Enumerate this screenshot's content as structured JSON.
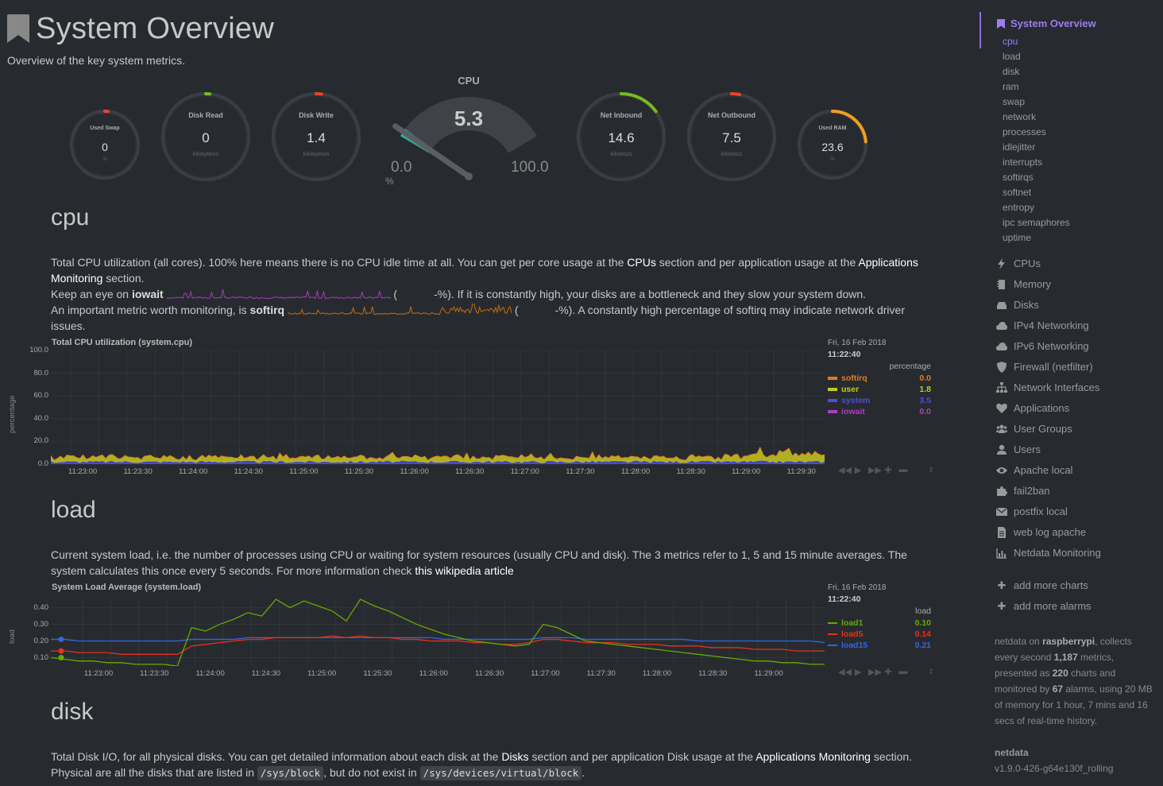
{
  "page": {
    "title": "System Overview",
    "subtitle": "Overview of the key system metrics."
  },
  "gauges": [
    {
      "id": "swap",
      "title": "Used Swap",
      "value": "0",
      "unit": "%",
      "fraction": 0.0,
      "color": "#e8463b"
    },
    {
      "id": "diskread",
      "title": "Disk Read",
      "value": "0",
      "unit": "kilobytes/s",
      "fraction": 0.0,
      "color": "#77bb22"
    },
    {
      "id": "diskwrite",
      "title": "Disk Write",
      "value": "1.4",
      "unit": "kilobytes/s",
      "fraction": 0.02,
      "color": "#ee4422"
    },
    {
      "id": "netin",
      "title": "Net Inbound",
      "value": "14.6",
      "unit": "kilobits/s",
      "fraction": 0.15,
      "color": "#77bb22"
    },
    {
      "id": "netout",
      "title": "Net Outbound",
      "value": "7.5",
      "unit": "kilobits/s",
      "fraction": 0.03,
      "color": "#ee4422"
    },
    {
      "id": "ram",
      "title": "Used RAM",
      "value": "23.6",
      "unit": "%",
      "fraction": 0.236,
      "color": "#f0a020"
    }
  ],
  "cpu_gauge": {
    "title": "CPU",
    "value": "5.3",
    "min": "0.0",
    "max": "100.0",
    "unit": "%",
    "fraction": 0.053
  },
  "cpu": {
    "heading": "cpu",
    "p1_a": "Total CPU utilization (all cores). 100% here means there is no CPU idle time at all. You can get per core usage at the ",
    "p1_link1": "CPUs",
    "p1_b": " section and per application usage at the ",
    "p1_link2": "Applications Monitoring",
    "p1_c": " section.",
    "p2_a": "Keep an eye on ",
    "p2_bold": "iowait",
    "p2_open": " (",
    "p2_tail": "-%). If it is constantly high, your disks are a bottleneck and they slow your system down.",
    "p3_a": "An important metric worth monitoring, is ",
    "p3_bold": "softirq",
    "p3_open": " (",
    "p3_tail": "-%). A constantly high percentage of softirq may indicate network driver issues.",
    "spark_iowait_color": "#a63db8",
    "spark_softirq_color": "#c86b10"
  },
  "load": {
    "heading": "load",
    "p1_a": "Current system load, i.e. the number of processes using CPU or waiting for system resources (usually CPU and disk). The 3 metrics refer to 1, 5 and 15 minute averages. The system calculates this once every 5 seconds. For more information check ",
    "p1_link": "this wikipedia article"
  },
  "disk": {
    "heading": "disk",
    "p1_a": "Total Disk I/O, for all physical disks. You can get detailed information about each disk at the ",
    "p1_link1": "Disks",
    "p1_b": " section and per application Disk usage at the ",
    "p1_link2": "Applications Monitoring",
    "p1_c": " section.",
    "p2_a": "Physical are all the disks that are listed in ",
    "p2_code1": "/sys/block",
    "p2_b": ", but do not exist in ",
    "p2_code2": "/sys/devices/virtual/block",
    "p2_c": "."
  },
  "chart_data": [
    {
      "type": "area",
      "title": "Total CPU utilization (system.cpu)",
      "ylabel": "percentage",
      "ylim": [
        0,
        100
      ],
      "yticks": [
        "100.0",
        "80.0",
        "60.0",
        "40.0",
        "20.0",
        "0.0"
      ],
      "xticks": [
        "11:23:00",
        "11:23:30",
        "11:24:00",
        "11:24:30",
        "11:25:00",
        "11:25:30",
        "11:26:00",
        "11:26:30",
        "11:27:00",
        "11:27:30",
        "11:28:00",
        "11:28:30",
        "11:29:00",
        "11:29:30"
      ],
      "legend": {
        "date": "Fri, 16 Feb 2018",
        "time": "11:22:40",
        "units": "percentage"
      },
      "series": [
        {
          "name": "softirq",
          "value": "0.0",
          "color": "#e07b1a",
          "level": 0.3
        },
        {
          "name": "user",
          "value": "1.8",
          "color": "#c8c820",
          "level": 3.5
        },
        {
          "name": "system",
          "value": "3.5",
          "color": "#4d4dd8",
          "level": 2.2
        },
        {
          "name": "iowait",
          "value": "0.0",
          "color": "#b03cc0",
          "level": 0.1
        }
      ]
    },
    {
      "type": "line",
      "title": "System Load Average (system.load)",
      "ylabel": "load",
      "ylim": [
        0.05,
        0.46
      ],
      "yticks": [
        "0.40",
        "0.30",
        "0.20",
        "0.10"
      ],
      "xticks": [
        "11:23:00",
        "11:23:30",
        "11:24:00",
        "11:24:30",
        "11:25:00",
        "11:25:30",
        "11:26:00",
        "11:26:30",
        "11:27:00",
        "11:27:30",
        "11:28:00",
        "11:28:30",
        "11:29:00"
      ],
      "legend": {
        "date": "Fri, 16 Feb 2018",
        "time": "11:22:40",
        "units": "load"
      },
      "series": [
        {
          "name": "load1",
          "value": "0.10",
          "color": "#66aa00",
          "values": [
            0.1,
            0.09,
            0.08,
            0.08,
            0.07,
            0.07,
            0.06,
            0.06,
            0.06,
            0.05,
            0.28,
            0.26,
            0.3,
            0.33,
            0.37,
            0.35,
            0.45,
            0.4,
            0.44,
            0.41,
            0.38,
            0.32,
            0.45,
            0.41,
            0.38,
            0.34,
            0.3,
            0.27,
            0.24,
            0.22,
            0.2,
            0.19,
            0.18,
            0.17,
            0.18,
            0.3,
            0.28,
            0.24,
            0.2,
            0.19,
            0.18,
            0.17,
            0.16,
            0.15,
            0.14,
            0.13,
            0.12,
            0.11,
            0.1,
            0.09,
            0.08,
            0.08,
            0.07,
            0.07,
            0.06,
            0.06
          ]
        },
        {
          "name": "load5",
          "value": "0.14",
          "color": "#e8301a",
          "values": [
            0.14,
            0.14,
            0.13,
            0.13,
            0.13,
            0.12,
            0.12,
            0.12,
            0.12,
            0.12,
            0.17,
            0.18,
            0.19,
            0.2,
            0.21,
            0.21,
            0.22,
            0.22,
            0.22,
            0.22,
            0.23,
            0.22,
            0.23,
            0.22,
            0.22,
            0.21,
            0.21,
            0.2,
            0.2,
            0.2,
            0.19,
            0.19,
            0.18,
            0.18,
            0.19,
            0.21,
            0.21,
            0.2,
            0.19,
            0.19,
            0.19,
            0.18,
            0.18,
            0.18,
            0.17,
            0.17,
            0.17,
            0.16,
            0.16,
            0.16,
            0.15,
            0.15,
            0.15,
            0.14,
            0.14,
            0.14
          ]
        },
        {
          "name": "load15",
          "value": "0.21",
          "color": "#3366dd",
          "values": [
            0.21,
            0.21,
            0.2,
            0.2,
            0.2,
            0.2,
            0.2,
            0.2,
            0.2,
            0.2,
            0.21,
            0.21,
            0.21,
            0.21,
            0.22,
            0.22,
            0.22,
            0.22,
            0.22,
            0.22,
            0.22,
            0.22,
            0.22,
            0.22,
            0.22,
            0.22,
            0.22,
            0.22,
            0.21,
            0.21,
            0.21,
            0.21,
            0.21,
            0.21,
            0.21,
            0.22,
            0.22,
            0.22,
            0.21,
            0.21,
            0.21,
            0.21,
            0.21,
            0.21,
            0.21,
            0.21,
            0.2,
            0.2,
            0.2,
            0.2,
            0.2,
            0.2,
            0.2,
            0.2,
            0.2,
            0.19
          ]
        }
      ]
    }
  ],
  "sidebar": {
    "top": "System Overview",
    "subs": [
      "cpu",
      "load",
      "disk",
      "ram",
      "swap",
      "network",
      "processes",
      "idlejitter",
      "interrupts",
      "softirqs",
      "softnet",
      "entropy",
      "ipc semaphores",
      "uptime"
    ],
    "items": [
      {
        "label": "CPUs",
        "icon": "bolt-icon"
      },
      {
        "label": "Memory",
        "icon": "memory-icon"
      },
      {
        "label": "Disks",
        "icon": "hdd-icon"
      },
      {
        "label": "IPv4 Networking",
        "icon": "cloud-icon"
      },
      {
        "label": "IPv6 Networking",
        "icon": "cloud-icon"
      },
      {
        "label": "Firewall (netfilter)",
        "icon": "shield-icon"
      },
      {
        "label": "Network Interfaces",
        "icon": "sitemap-icon"
      },
      {
        "label": "Applications",
        "icon": "heartbeat-icon"
      },
      {
        "label": "User Groups",
        "icon": "users-icon"
      },
      {
        "label": "Users",
        "icon": "user-icon"
      },
      {
        "label": "Apache local",
        "icon": "eye-icon"
      },
      {
        "label": "fail2ban",
        "icon": "puzzle-icon"
      },
      {
        "label": "postfix local",
        "icon": "envelope-icon"
      },
      {
        "label": "web log apache",
        "icon": "file-icon"
      },
      {
        "label": "Netdata Monitoring",
        "icon": "bar-chart-icon"
      }
    ],
    "add_charts": "add more charts",
    "add_alarms": "add more alarms",
    "info": {
      "a": "netdata on ",
      "host": "raspberrypi",
      "b": ", collects every second ",
      "metrics": "1,187",
      "c": " metrics, presented as ",
      "charts": "220",
      "d": " charts and monitored by ",
      "alarms": "67",
      "e": " alarms, using 20 MB of memory for 1 hour, 7 mins and 16 secs of real-time history."
    },
    "version_title": "netdata",
    "version": "v1.9.0-426-g64e130f_rolling"
  }
}
